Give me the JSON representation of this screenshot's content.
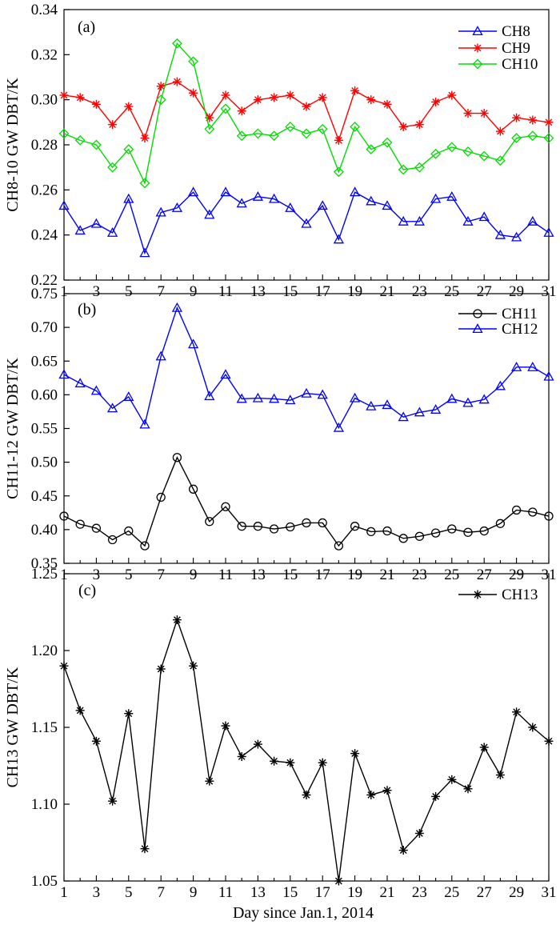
{
  "figure": {
    "xlabel": "Day  since  Jan.1, 2014"
  },
  "chart_data": [
    {
      "type": "line",
      "panel_label": "(a)",
      "ylabel": "CH8-10  GW  DBT/K",
      "xlabel": "",
      "ylim": [
        0.22,
        0.34
      ],
      "yticks": [
        0.22,
        0.24,
        0.26,
        0.28,
        0.3,
        0.32,
        0.34
      ],
      "ytick_labels": [
        "0.22",
        "0.24",
        "0.26",
        "0.28",
        "0.30",
        "0.32",
        "0.34"
      ],
      "xlim": [
        1,
        31
      ],
      "xticks": [
        1,
        3,
        5,
        7,
        9,
        11,
        13,
        15,
        17,
        19,
        21,
        23,
        25,
        27,
        29,
        31
      ],
      "xtick_labels": [
        "1",
        "3",
        "5",
        "7",
        "9",
        "11",
        "13",
        "15",
        "17",
        "19",
        "21",
        "23",
        "25",
        "27",
        "29",
        "31"
      ],
      "x": [
        1,
        2,
        3,
        4,
        5,
        6,
        7,
        8,
        9,
        10,
        11,
        12,
        13,
        14,
        15,
        16,
        17,
        18,
        19,
        20,
        21,
        22,
        23,
        24,
        25,
        26,
        27,
        28,
        29,
        30,
        31
      ],
      "legend_position": "top-right",
      "series": [
        {
          "name": "CH8",
          "color": "#0000ff",
          "marker": "triangle",
          "values": [
            0.253,
            0.242,
            0.245,
            0.241,
            0.256,
            0.232,
            0.25,
            0.252,
            0.259,
            0.249,
            0.259,
            0.254,
            0.257,
            0.256,
            0.252,
            0.245,
            0.253,
            0.238,
            0.259,
            0.255,
            0.253,
            0.246,
            0.246,
            0.256,
            0.257,
            0.246,
            0.248,
            0.24,
            0.239,
            0.246,
            0.241
          ]
        },
        {
          "name": "CH9",
          "color": "#ff0000",
          "marker": "asterisk",
          "values": [
            0.302,
            0.301,
            0.298,
            0.289,
            0.297,
            0.283,
            0.306,
            0.308,
            0.303,
            0.292,
            0.302,
            0.295,
            0.3,
            0.301,
            0.302,
            0.297,
            0.301,
            0.282,
            0.304,
            0.3,
            0.298,
            0.288,
            0.289,
            0.299,
            0.302,
            0.294,
            0.294,
            0.286,
            0.292,
            0.291,
            0.29
          ]
        },
        {
          "name": "CH10",
          "color": "#00dd00",
          "marker": "diamond",
          "values": [
            0.285,
            0.282,
            0.28,
            0.27,
            0.278,
            0.263,
            0.3,
            0.325,
            0.317,
            0.287,
            0.296,
            0.284,
            0.285,
            0.284,
            0.288,
            0.285,
            0.287,
            0.268,
            0.288,
            0.278,
            0.281,
            0.269,
            0.27,
            0.276,
            0.279,
            0.277,
            0.275,
            0.273,
            0.283,
            0.284,
            0.283
          ]
        }
      ]
    },
    {
      "type": "line",
      "panel_label": "(b)",
      "ylabel": "CH11-12  GW  DBT/K",
      "xlabel": "",
      "ylim": [
        0.35,
        0.75
      ],
      "yticks": [
        0.35,
        0.4,
        0.45,
        0.5,
        0.55,
        0.6,
        0.65,
        0.7,
        0.75
      ],
      "ytick_labels": [
        "0.35",
        "0.40",
        "0.45",
        "0.50",
        "0.55",
        "0.60",
        "0.65",
        "0.70",
        "0.75"
      ],
      "xlim": [
        1,
        31
      ],
      "xticks": [
        1,
        3,
        5,
        7,
        9,
        11,
        13,
        15,
        17,
        19,
        21,
        23,
        25,
        27,
        29,
        31
      ],
      "xtick_labels": [
        "1",
        "3",
        "5",
        "7",
        "9",
        "11",
        "13",
        "15",
        "17",
        "19",
        "21",
        "23",
        "25",
        "27",
        "29",
        "31"
      ],
      "x": [
        1,
        2,
        3,
        4,
        5,
        6,
        7,
        8,
        9,
        10,
        11,
        12,
        13,
        14,
        15,
        16,
        17,
        18,
        19,
        20,
        21,
        22,
        23,
        24,
        25,
        26,
        27,
        28,
        29,
        30,
        31
      ],
      "legend_position": "top-right",
      "series": [
        {
          "name": "CH11",
          "color": "#000000",
          "marker": "circle",
          "values": [
            0.42,
            0.408,
            0.402,
            0.385,
            0.398,
            0.376,
            0.448,
            0.507,
            0.46,
            0.412,
            0.434,
            0.405,
            0.405,
            0.401,
            0.404,
            0.41,
            0.41,
            0.376,
            0.405,
            0.397,
            0.398,
            0.387,
            0.39,
            0.395,
            0.401,
            0.396,
            0.398,
            0.409,
            0.429,
            0.426,
            0.42
          ]
        },
        {
          "name": "CH12",
          "color": "#0000ff",
          "marker": "triangle",
          "values": [
            0.63,
            0.617,
            0.606,
            0.58,
            0.597,
            0.556,
            0.657,
            0.729,
            0.675,
            0.598,
            0.63,
            0.594,
            0.595,
            0.594,
            0.592,
            0.602,
            0.6,
            0.551,
            0.595,
            0.583,
            0.585,
            0.567,
            0.574,
            0.578,
            0.594,
            0.588,
            0.593,
            0.613,
            0.641,
            0.641,
            0.627
          ]
        }
      ]
    },
    {
      "type": "line",
      "panel_label": "(c)",
      "ylabel": "CH13  GW  DBT/K",
      "xlabel": "Day  since  Jan.1, 2014",
      "ylim": [
        1.05,
        1.25
      ],
      "yticks": [
        1.05,
        1.1,
        1.15,
        1.2,
        1.25
      ],
      "ytick_labels": [
        "1.05",
        "1.10",
        "1.15",
        "1.20",
        "1.25"
      ],
      "xlim": [
        1,
        31
      ],
      "xticks": [
        1,
        3,
        5,
        7,
        9,
        11,
        13,
        15,
        17,
        19,
        21,
        23,
        25,
        27,
        29,
        31
      ],
      "xtick_labels": [
        "1",
        "3",
        "5",
        "7",
        "9",
        "11",
        "13",
        "15",
        "17",
        "19",
        "21",
        "23",
        "25",
        "27",
        "29",
        "31"
      ],
      "x": [
        1,
        2,
        3,
        4,
        5,
        6,
        7,
        8,
        9,
        10,
        11,
        12,
        13,
        14,
        15,
        16,
        17,
        18,
        19,
        20,
        21,
        22,
        23,
        24,
        25,
        26,
        27,
        28,
        29,
        30,
        31
      ],
      "legend_position": "top-right",
      "series": [
        {
          "name": "CH13",
          "color": "#000000",
          "marker": "asterisk",
          "values": [
            1.19,
            1.161,
            1.141,
            1.102,
            1.159,
            1.071,
            1.188,
            1.22,
            1.19,
            1.115,
            1.151,
            1.131,
            1.139,
            1.128,
            1.127,
            1.106,
            1.127,
            1.05,
            1.133,
            1.106,
            1.109,
            1.07,
            1.081,
            1.105,
            1.116,
            1.11,
            1.137,
            1.119,
            1.16,
            1.15,
            1.141
          ]
        }
      ]
    }
  ]
}
